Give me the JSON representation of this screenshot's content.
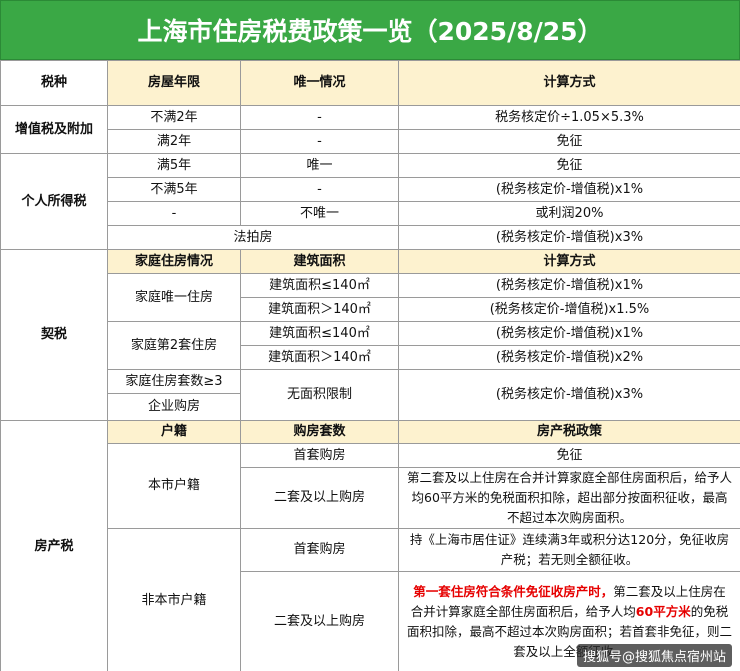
{
  "header": {
    "title": "上海市住房税费政策一览（2025/8/25）"
  },
  "table": {
    "columns": [
      "税种",
      "房屋年限",
      "唯一情况",
      "计算方式"
    ],
    "vat": {
      "name": "增值税及附加",
      "rows": [
        [
          "不满2年",
          "-",
          "税务核定价÷1.05×5.3%"
        ],
        [
          "满2年",
          "-",
          "免征"
        ]
      ]
    },
    "income": {
      "name": "个人所得税",
      "rows": [
        [
          "满5年",
          "唯一",
          "免征"
        ],
        [
          "不满5年",
          "-",
          "(税务核定价-增值税)x1%"
        ],
        [
          "-",
          "不唯一",
          "或利润20%"
        ]
      ],
      "auction": [
        "法拍房",
        "(税务核定价-增值税)x3%"
      ]
    },
    "deed": {
      "name": "契税",
      "columns": [
        "家庭住房情况",
        "建筑面积",
        "计算方式"
      ],
      "rows": [
        [
          "家庭唯一住房",
          "建筑面积≤140㎡",
          "(税务核定价-增值税)x1%"
        ],
        [
          "",
          "建筑面积＞140㎡",
          "(税务核定价-增值税)x1.5%"
        ],
        [
          "家庭第2套住房",
          "建筑面积≤140㎡",
          "(税务核定价-增值税)x1%"
        ],
        [
          "",
          "建筑面积＞140㎡",
          "(税务核定价-增值税)x2%"
        ],
        [
          "家庭住房套数≥3",
          "无面积限制",
          "(税务核定价-增值税)x3%"
        ],
        [
          "企业购房"
        ]
      ]
    },
    "property": {
      "name": "房产税",
      "columns": [
        "户籍",
        "购房套数",
        "房产税政策"
      ],
      "local": {
        "name": "本市户籍",
        "rows": [
          [
            "首套购房",
            "免征"
          ],
          [
            "二套及以上购房",
            "第二套及以上住房在合并计算家庭全部住房面积后，给予人均60平方米的免税面积扣除，超出部分按面积征收，最高不超过本次购房面积。"
          ]
        ]
      },
      "nonlocal": {
        "name": "非本市户籍",
        "rows": [
          [
            "首套购房",
            "持《上海市居住证》连续满3年或积分达120分，免征收房产税；若无则全额征收。"
          ],
          [
            "二套及以上购房",
            [
              "第一套住房符合条件免征收房产时，",
              "第二套及以上住房在合并计算家庭全部住房面积后，给予人均",
              "60平方米",
              "的免税面积扣除，最高不超过本次购房面积；若首套非免征，则二套及以上全额征收。"
            ]
          ]
        ]
      }
    }
  },
  "watermark": "搜狐号@搜狐焦点宿州站"
}
